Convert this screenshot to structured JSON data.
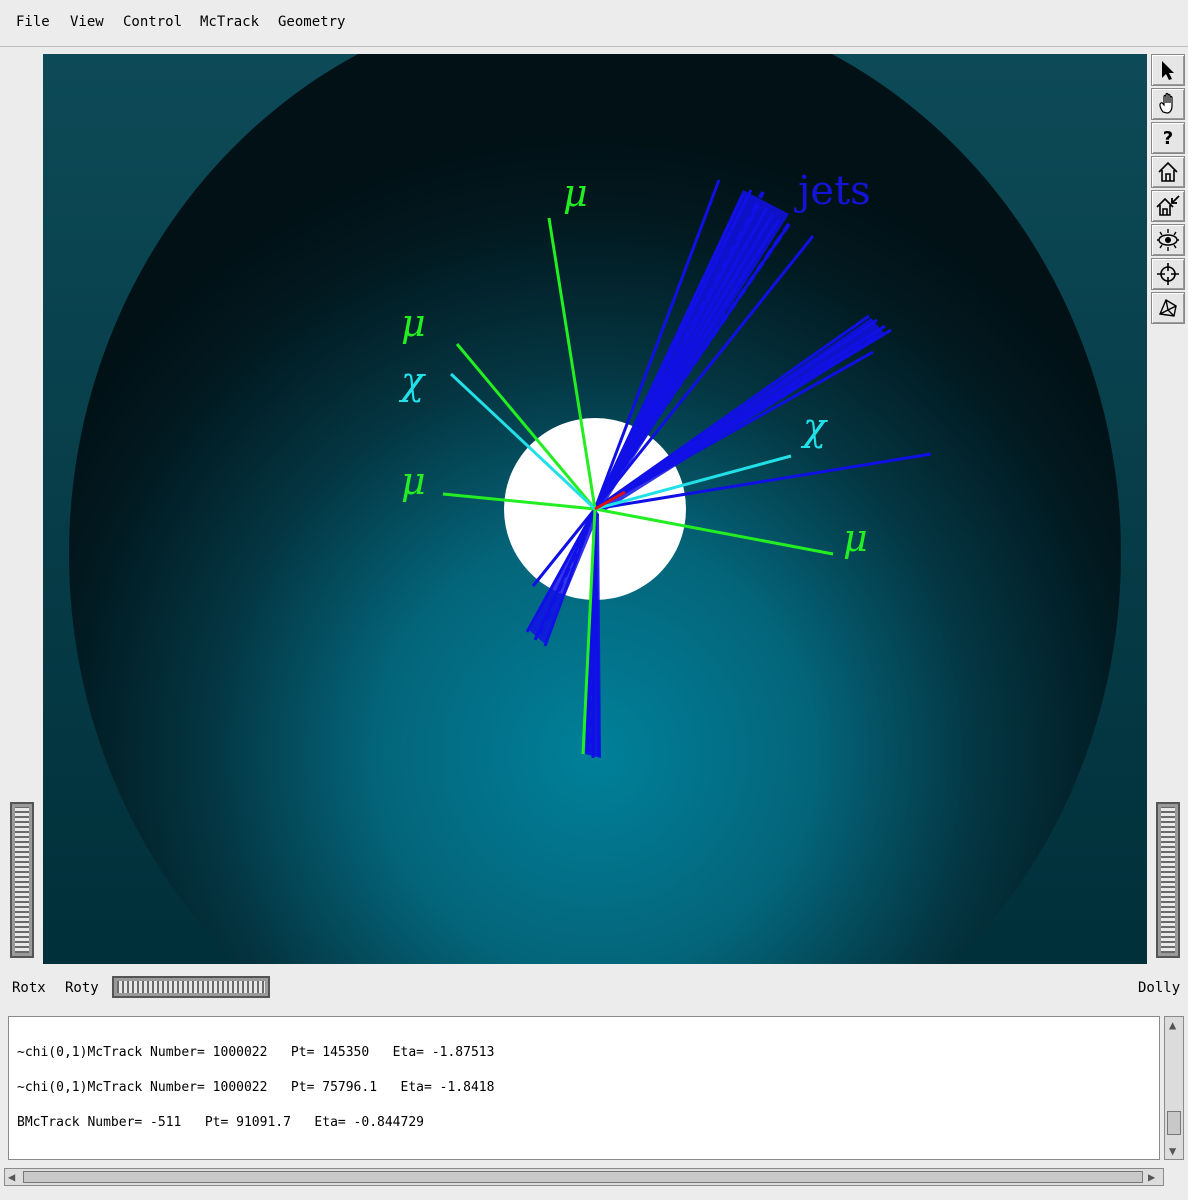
{
  "menu": [
    "File",
    "View",
    "Control",
    "McTrack",
    "Geometry"
  ],
  "viewer": {
    "labels": {
      "mu": "μ",
      "chi": "χ",
      "jets": "jets"
    },
    "colors": {
      "muon": "#22ee22",
      "chi": "#22e0e8",
      "jet": "#1010e6",
      "other": "#e01010",
      "background_inner": "#00798f",
      "background_outer": "#02171d",
      "core": "#ffffff"
    }
  },
  "toolbar": {
    "tools": [
      {
        "name": "select-arrow-icon"
      },
      {
        "name": "pan-hand-icon"
      },
      {
        "name": "help-icon",
        "glyph": "?"
      },
      {
        "name": "home-icon"
      },
      {
        "name": "set-home-icon"
      },
      {
        "name": "view-all-icon"
      },
      {
        "name": "seek-icon"
      },
      {
        "name": "toggle-camera-icon"
      }
    ]
  },
  "wheels": {
    "rotx": "Rotx",
    "roty": "Roty",
    "dolly": "Dolly"
  },
  "console": {
    "lines": [
      "~chi(0,1)McTrack Number= 1000022   Pt= 145350   Eta= -1.87513",
      "~chi(0,1)McTrack Number= 1000022   Pt= 75796.1   Eta= -1.8418",
      "BMcTrack Number= -511   Pt= 91091.7   Eta= -0.844729"
    ]
  }
}
